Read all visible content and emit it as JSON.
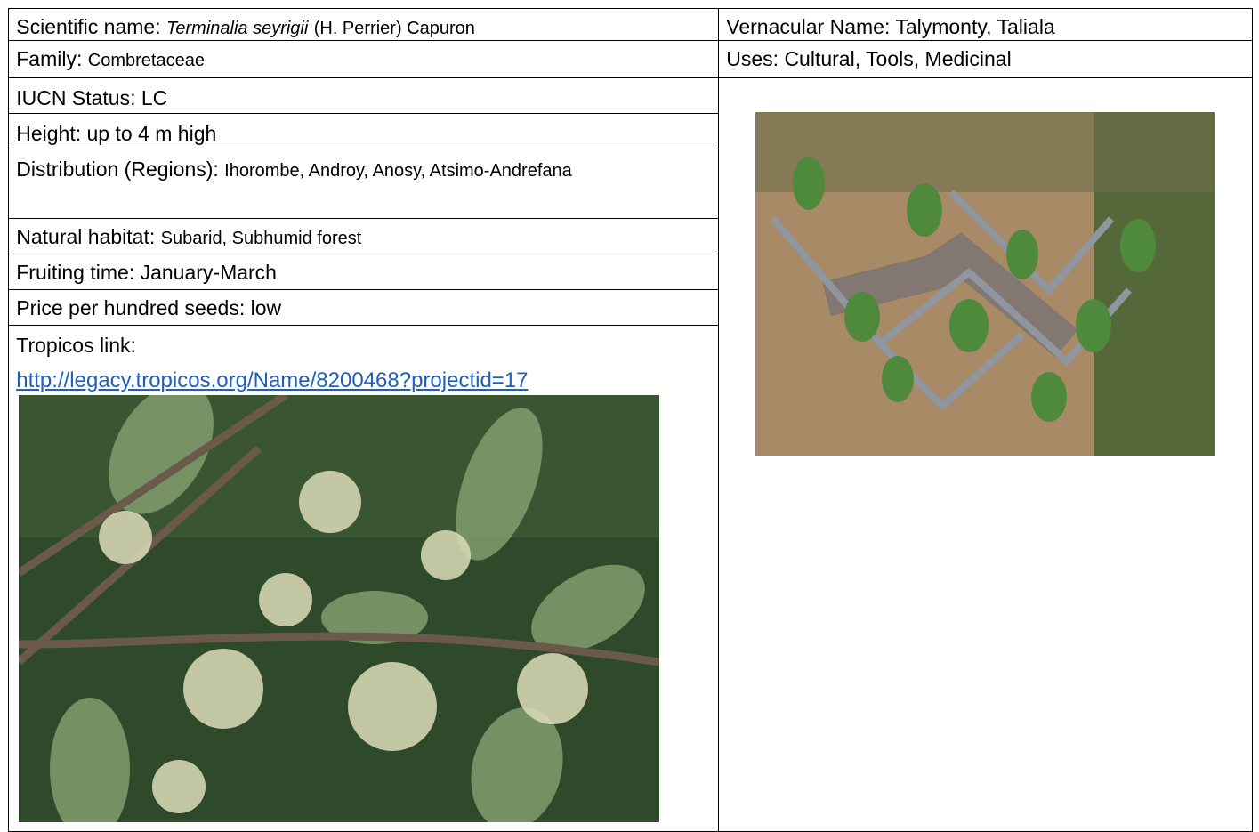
{
  "left": {
    "scientific_name": {
      "label": "Scientific name:",
      "species": "Terminalia seyrigii",
      "authority": "(H. Perrier) Capuron"
    },
    "family": {
      "label": "Family:",
      "value": "Combretaceae"
    },
    "iucn": {
      "label": "IUCN Status:",
      "value": "LC"
    },
    "height": {
      "label": "Height:",
      "value": "up to 4 m high"
    },
    "distribution": {
      "label": "Distribution (Regions):",
      "value": "Ihorombe, Androy, Anosy, Atsimo-Andrefana"
    },
    "habitat": {
      "label": "Natural habitat:",
      "value": "Subarid, Subhumid forest"
    },
    "fruiting": {
      "label": "Fruiting time:",
      "value": "January-March"
    },
    "price": {
      "label": "Price per hundred seeds:",
      "value": "low"
    },
    "tropicos": {
      "label": "Tropicos link:",
      "url": "http://legacy.tropicos.org/Name/8200468?projectid=17"
    }
  },
  "right": {
    "vernacular": {
      "label": "Vernacular Name:",
      "value": "Talymonty, Taliala"
    },
    "uses": {
      "label": "Uses:",
      "value": "Cultural, Tools, Medicinal"
    }
  }
}
